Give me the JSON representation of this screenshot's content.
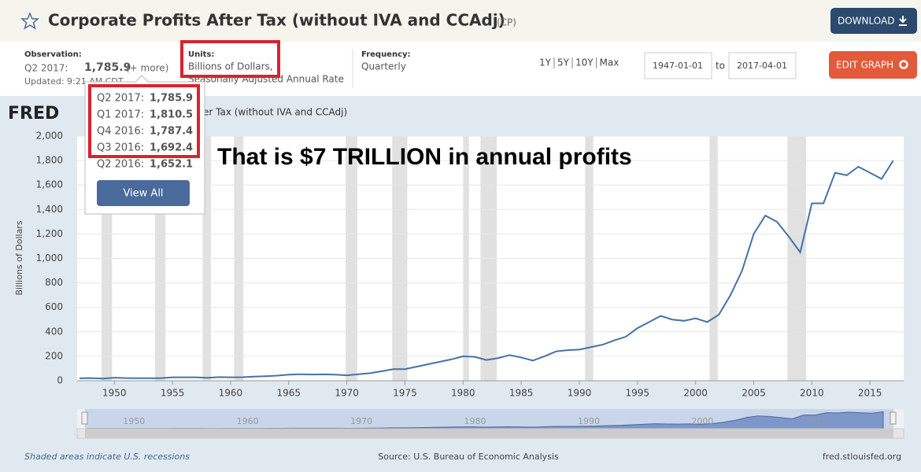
{
  "header": {
    "title": "Corporate Profits After Tax (without IVA and CCAdj)",
    "code": "(CP)",
    "download": "DOWNLOAD"
  },
  "info": {
    "observation_label": "Observation:",
    "observation": "Q2 2017:",
    "observation_value": "1,785.9",
    "more": "(+ more)",
    "updated": "Updated: 9:21 AM CDT",
    "units_label": "Units:",
    "units": "Billions of Dollars,",
    "units2": "Seasonally Adjusted Annual Rate",
    "frequency_label": "Frequency:",
    "frequency": "Quarterly",
    "ranges": [
      "1Y",
      "5Y",
      "10Y",
      "Max"
    ],
    "start": "1947-01-01",
    "to": "to",
    "end": "2017-04-01",
    "edit": "EDIT GRAPH"
  },
  "popup": {
    "rows": [
      [
        "Q2 2017:",
        "1,785.9"
      ],
      [
        "Q1 2017:",
        "1,810.5"
      ],
      [
        "Q4 2016:",
        "1,787.4"
      ],
      [
        "Q3 2016:",
        "1,692.4"
      ],
      [
        "Q2 2016:",
        "1,652.1"
      ]
    ],
    "button": "View All"
  },
  "logo": "FRED",
  "chart_data": {
    "type": "line",
    "title": "er Tax (without IVA and CCAdj)",
    "ylabel": "Billions of Dollars",
    "annotation": "That is $7 TRILLION in annual profits",
    "color": "#4572a7",
    "x": [
      1947,
      1948,
      1949,
      1950,
      1951,
      1952,
      1953,
      1954,
      1955,
      1956,
      1957,
      1958,
      1959,
      1960,
      1961,
      1962,
      1963,
      1964,
      1965,
      1966,
      1967,
      1968,
      1969,
      1970,
      1971,
      1972,
      1973,
      1974,
      1975,
      1976,
      1977,
      1978,
      1979,
      1980,
      1981,
      1982,
      1983,
      1984,
      1985,
      1986,
      1987,
      1988,
      1989,
      1990,
      1991,
      1992,
      1993,
      1994,
      1995,
      1996,
      1997,
      1998,
      1999,
      2000,
      2001,
      2002,
      2003,
      2004,
      2005,
      2006,
      2007,
      2008,
      2009,
      2010,
      2011,
      2012,
      2013,
      2014,
      2015,
      2016,
      2017
    ],
    "values": [
      20,
      22,
      18,
      25,
      22,
      21,
      21,
      21,
      28,
      28,
      28,
      24,
      30,
      28,
      29,
      34,
      37,
      42,
      50,
      53,
      51,
      52,
      50,
      44,
      53,
      62,
      78,
      95,
      95,
      115,
      135,
      155,
      175,
      200,
      195,
      170,
      185,
      210,
      190,
      165,
      200,
      240,
      250,
      255,
      275,
      295,
      330,
      360,
      430,
      480,
      530,
      500,
      490,
      510,
      480,
      540,
      700,
      900,
      1200,
      1350,
      1300,
      1180,
      1050,
      1450,
      1450,
      1700,
      1680,
      1750,
      1700,
      1650,
      1800
    ],
    "xlim": [
      1946.8,
      2017.9
    ],
    "xticks": [
      1950,
      1955,
      1960,
      1965,
      1970,
      1975,
      1980,
      1985,
      1990,
      1995,
      2000,
      2005,
      2010,
      2015
    ],
    "ylim": [
      0,
      2000
    ],
    "yticks": [
      0,
      200,
      400,
      600,
      800,
      {
        "value": 1000,
        "label": "1,000"
      },
      {
        "value": 1200,
        "label": "1,200"
      },
      {
        "value": 1400,
        "label": "1,400"
      },
      {
        "value": 1600,
        "label": "1,600"
      },
      {
        "value": 1800,
        "label": "1,800"
      },
      {
        "value": 2000,
        "label": "2,000"
      }
    ],
    "grid": true,
    "recessions": [
      [
        1948.9,
        1949.8
      ],
      [
        1953.5,
        1954.4
      ],
      [
        1957.6,
        1958.3
      ],
      [
        1960.3,
        1961.1
      ],
      [
        1969.9,
        1970.9
      ],
      [
        1973.9,
        1975.2
      ],
      [
        1980.0,
        1980.5
      ],
      [
        1981.5,
        1982.9
      ],
      [
        1990.5,
        1991.2
      ],
      [
        2001.2,
        2001.9
      ],
      [
        2007.9,
        2009.5
      ]
    ],
    "navigator_ticks": [
      1950,
      1960,
      1970,
      1980,
      1990,
      2000,
      2010
    ]
  },
  "footer": {
    "note": "Shaded areas indicate U.S. recessions",
    "source": "Source: U.S. Bureau of Economic Analysis",
    "site": "fred.stlouisfed.org"
  }
}
